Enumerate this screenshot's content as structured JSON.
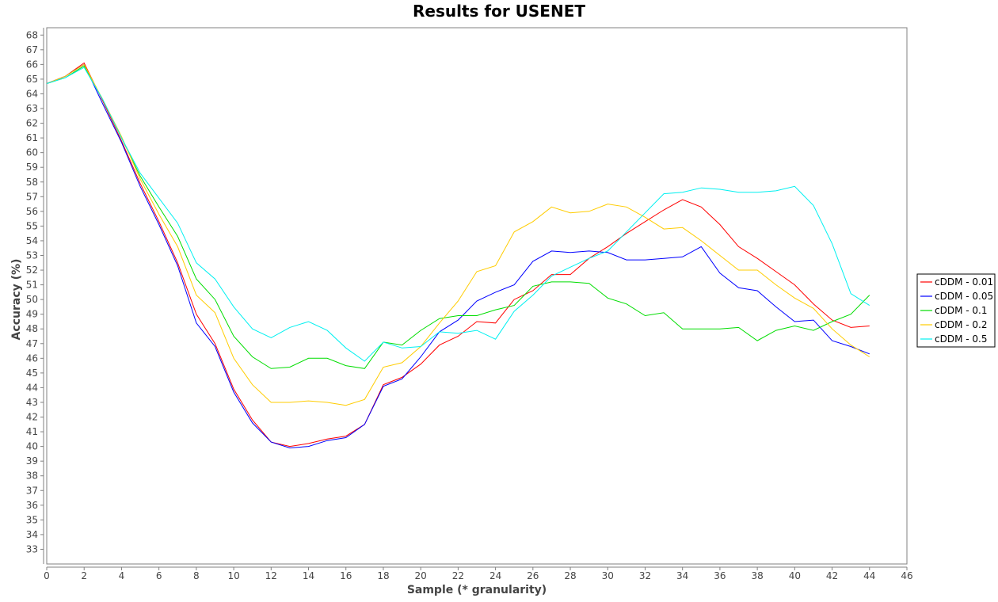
{
  "chart_data": {
    "type": "line",
    "title": "Results for USENET",
    "xlabel": "Sample (* granularity)",
    "ylabel": "Accuracy (%)",
    "xlim": [
      0,
      46
    ],
    "ylim": [
      32,
      68.5
    ],
    "x_ticks": [
      0,
      2,
      4,
      6,
      8,
      10,
      12,
      14,
      16,
      18,
      20,
      22,
      24,
      26,
      28,
      30,
      32,
      34,
      36,
      38,
      40,
      42,
      44,
      46
    ],
    "y_ticks": [
      33,
      34,
      35,
      36,
      37,
      38,
      39,
      40,
      41,
      42,
      43,
      44,
      45,
      46,
      47,
      48,
      49,
      50,
      51,
      52,
      53,
      54,
      55,
      56,
      57,
      58,
      59,
      60,
      61,
      62,
      63,
      64,
      65,
      66,
      67,
      68
    ],
    "grid": false,
    "legend_position": "right",
    "x": [
      0,
      1,
      2,
      3,
      4,
      5,
      6,
      7,
      8,
      9,
      10,
      11,
      12,
      13,
      14,
      15,
      16,
      17,
      18,
      19,
      20,
      21,
      22,
      23,
      24,
      25,
      26,
      27,
      28,
      29,
      30,
      31,
      32,
      33,
      34,
      35,
      36,
      37,
      38,
      39,
      40,
      41,
      42,
      43,
      44
    ],
    "series": [
      {
        "name": "cDDM - 0.01",
        "color": "#ff0000",
        "values": [
          64.7,
          65.2,
          66.1,
          63.5,
          60.8,
          57.9,
          55.3,
          52.5,
          49.0,
          47.0,
          43.9,
          41.8,
          40.3,
          40.0,
          40.2,
          40.5,
          40.7,
          41.5,
          44.2,
          44.7,
          45.6,
          46.9,
          47.5,
          48.5,
          48.4,
          50.0,
          50.6,
          51.7,
          51.7,
          52.8,
          53.6,
          54.5,
          55.3,
          56.1,
          56.8,
          56.3,
          55.1,
          53.6,
          52.8,
          51.9,
          51.0,
          49.7,
          48.6,
          48.1,
          48.2
        ]
      },
      {
        "name": "cDDM - 0.05",
        "color": "#0000ff",
        "values": [
          64.7,
          65.2,
          66.0,
          63.3,
          60.7,
          57.7,
          55.1,
          52.3,
          48.4,
          46.8,
          43.7,
          41.6,
          40.3,
          39.9,
          40.0,
          40.4,
          40.6,
          41.5,
          44.1,
          44.6,
          46.1,
          47.8,
          48.6,
          49.9,
          50.5,
          51.0,
          52.6,
          53.3,
          53.2,
          53.3,
          53.2,
          52.7,
          52.7,
          52.8,
          52.9,
          53.6,
          51.8,
          50.8,
          50.6,
          49.5,
          48.5,
          48.6,
          47.2,
          46.8,
          46.3
        ]
      },
      {
        "name": "cDDM - 0.1",
        "color": "#00dd00",
        "values": [
          64.7,
          65.1,
          65.9,
          63.6,
          61.0,
          58.4,
          56.3,
          54.3,
          51.4,
          50.0,
          47.5,
          46.1,
          45.3,
          45.4,
          46.0,
          46.0,
          45.5,
          45.3,
          47.1,
          46.9,
          47.9,
          48.7,
          48.9,
          48.9,
          49.3,
          49.6,
          50.9,
          51.2,
          51.2,
          51.1,
          50.1,
          49.7,
          48.9,
          49.1,
          48.0,
          48.0,
          48.0,
          48.1,
          47.2,
          47.9,
          48.2,
          47.9,
          48.5,
          49.0,
          50.3
        ]
      },
      {
        "name": "cDDM - 0.2",
        "color": "#ffcc00",
        "values": [
          64.7,
          65.2,
          66.0,
          63.6,
          61.1,
          58.2,
          55.8,
          53.6,
          50.3,
          49.1,
          46.0,
          44.2,
          43.0,
          43.0,
          43.1,
          43.0,
          42.8,
          43.2,
          45.4,
          45.7,
          46.8,
          48.4,
          49.9,
          51.9,
          52.3,
          54.6,
          55.3,
          56.3,
          55.9,
          56.0,
          56.5,
          56.3,
          55.6,
          54.8,
          54.9,
          54.0,
          53.0,
          52.0,
          52.0,
          51.0,
          50.1,
          49.4,
          48.0,
          46.9,
          46.1
        ]
      },
      {
        "name": "cDDM - 0.5",
        "color": "#00f0f0",
        "values": [
          64.7,
          65.1,
          65.8,
          63.6,
          61.0,
          58.6,
          56.9,
          55.2,
          52.5,
          51.4,
          49.5,
          48.0,
          47.4,
          48.1,
          48.5,
          47.9,
          46.7,
          45.8,
          47.1,
          46.7,
          46.8,
          47.8,
          47.7,
          47.9,
          47.3,
          49.2,
          50.3,
          51.6,
          52.2,
          52.8,
          53.3,
          54.6,
          55.9,
          57.2,
          57.3,
          57.6,
          57.5,
          57.3,
          57.3,
          57.4,
          57.7,
          56.4,
          53.8,
          50.4,
          49.6
        ]
      }
    ]
  }
}
